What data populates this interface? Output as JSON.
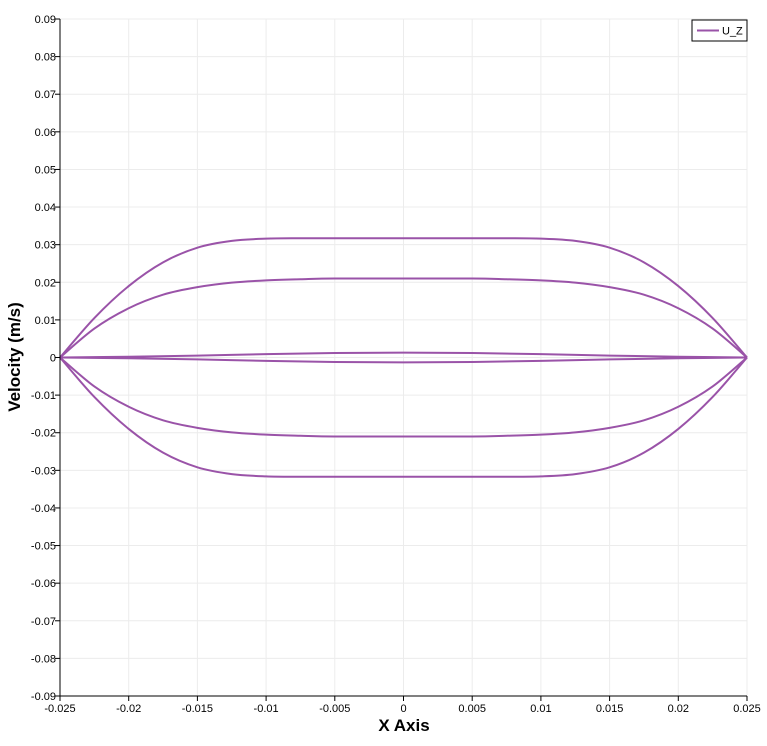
{
  "chart_data": {
    "type": "line",
    "xlabel": "X Axis",
    "ylabel": "Velocity (m/s)",
    "xlim": [
      -0.025,
      0.025
    ],
    "ylim": [
      -0.09,
      0.09
    ],
    "x_ticks": [
      -0.025,
      -0.02,
      -0.015,
      -0.01,
      -0.005,
      0,
      0.005,
      0.01,
      0.015,
      0.02,
      0.025
    ],
    "x_tick_labels": [
      "-0.025",
      "-0.02",
      "-0.015",
      "-0.01",
      "-0.005",
      "0",
      "0.005",
      "0.01",
      "0.015",
      "0.02",
      "0.025"
    ],
    "y_ticks": [
      0.09,
      0.08,
      0.07,
      0.06,
      0.05,
      0.04,
      0.03,
      0.02,
      0.01,
      0,
      -0.01,
      -0.02,
      -0.03,
      -0.04,
      -0.05,
      -0.06,
      -0.07,
      -0.08,
      -0.09
    ],
    "y_tick_labels": [
      "0.09",
      "0.08",
      "0.07",
      "0.06",
      "0.05",
      "0.04",
      "0.03",
      "0.02",
      "0.01",
      "0",
      "-0.01",
      "-0.02",
      "-0.03",
      "-0.04",
      "-0.05",
      "-0.06",
      "-0.07",
      "-0.08",
      "-0.09"
    ],
    "grid": true,
    "legend_position": "top-right",
    "series": [
      {
        "name": "U_Z",
        "color": "#9a53a8",
        "profiles": [
          {
            "x": [
              -0.025,
              -0.0225,
              -0.02,
              -0.0175,
              -0.015,
              -0.0125,
              -0.01,
              -0.0075,
              -0.005,
              0,
              0.005,
              0.0075,
              0.01,
              0.0125,
              0.015,
              0.0175,
              0.02,
              0.0225,
              0.025
            ],
            "y": [
              0,
              0.0105,
              0.019,
              0.0253,
              0.0292,
              0.031,
              0.0316,
              0.0317,
              0.0317,
              0.0317,
              0.0317,
              0.0317,
              0.0316,
              0.031,
              0.0292,
              0.0253,
              0.019,
              0.0105,
              0
            ]
          },
          {
            "x": [
              -0.025,
              -0.0225,
              -0.02,
              -0.0175,
              -0.015,
              -0.0125,
              -0.01,
              -0.0075,
              -0.005,
              0,
              0.005,
              0.0075,
              0.01,
              0.0125,
              0.015,
              0.0175,
              0.02,
              0.0225,
              0.025
            ],
            "y": [
              0,
              0.0077,
              0.0131,
              0.0167,
              0.0187,
              0.0199,
              0.0205,
              0.0208,
              0.021,
              0.021,
              0.021,
              0.0208,
              0.0205,
              0.0199,
              0.0187,
              0.0167,
              0.0131,
              0.0077,
              0
            ]
          },
          {
            "x": [
              -0.025,
              -0.02,
              -0.015,
              -0.01,
              -0.005,
              0,
              0.005,
              0.01,
              0.015,
              0.02,
              0.025
            ],
            "y": [
              0,
              0.0002,
              0.0005,
              0.0009,
              0.0012,
              0.0013,
              0.0012,
              0.0009,
              0.0005,
              0.0002,
              0
            ]
          },
          {
            "x": [
              -0.025,
              -0.02,
              -0.015,
              -0.01,
              -0.005,
              0,
              0.005,
              0.01,
              0.015,
              0.02,
              0.025
            ],
            "y": [
              0,
              -0.0002,
              -0.0005,
              -0.0009,
              -0.0012,
              -0.0013,
              -0.0012,
              -0.0009,
              -0.0005,
              -0.0002,
              0
            ]
          },
          {
            "x": [
              -0.025,
              -0.0225,
              -0.02,
              -0.0175,
              -0.015,
              -0.0125,
              -0.01,
              -0.0075,
              -0.005,
              0,
              0.005,
              0.0075,
              0.01,
              0.0125,
              0.015,
              0.0175,
              0.02,
              0.0225,
              0.025
            ],
            "y": [
              0,
              -0.0077,
              -0.0131,
              -0.0167,
              -0.0187,
              -0.0199,
              -0.0205,
              -0.0208,
              -0.021,
              -0.021,
              -0.021,
              -0.0208,
              -0.0205,
              -0.0199,
              -0.0187,
              -0.0167,
              -0.0131,
              -0.0077,
              0
            ]
          },
          {
            "x": [
              -0.025,
              -0.0225,
              -0.02,
              -0.0175,
              -0.015,
              -0.0125,
              -0.01,
              -0.0075,
              -0.005,
              0,
              0.005,
              0.0075,
              0.01,
              0.0125,
              0.015,
              0.0175,
              0.02,
              0.0225,
              0.025
            ],
            "y": [
              0,
              -0.0105,
              -0.019,
              -0.0253,
              -0.0292,
              -0.031,
              -0.0316,
              -0.0317,
              -0.0317,
              -0.0317,
              -0.0317,
              -0.0317,
              -0.0316,
              -0.031,
              -0.0292,
              -0.0253,
              -0.019,
              -0.0105,
              0
            ]
          }
        ]
      }
    ]
  }
}
